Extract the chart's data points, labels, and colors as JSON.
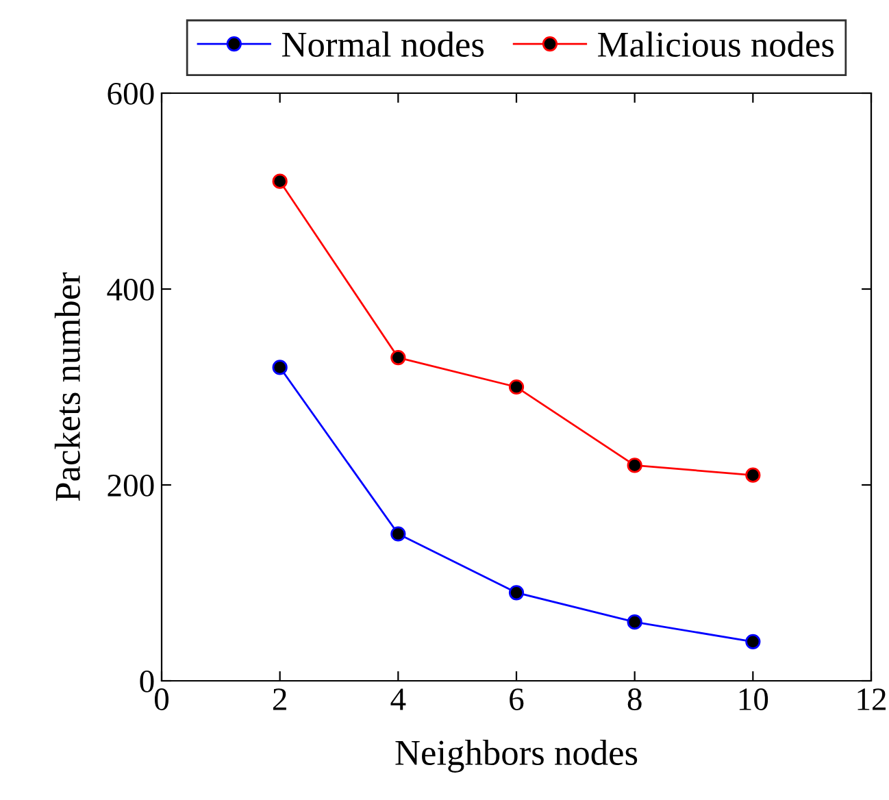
{
  "chart_data": {
    "type": "line",
    "xlabel": "Neighbors nodes",
    "ylabel": "Packets number",
    "x": [
      2,
      4,
      6,
      8,
      10
    ],
    "series": [
      {
        "name": "Normal nodes",
        "color": "#0000ff",
        "values": [
          320,
          150,
          90,
          60,
          40
        ]
      },
      {
        "name": "Malicious nodes",
        "color": "#ff0000",
        "values": [
          510,
          330,
          300,
          220,
          210
        ]
      }
    ],
    "xlim": [
      0,
      12
    ],
    "xticks": [
      0,
      2,
      4,
      6,
      8,
      10,
      12
    ],
    "ylim": [
      0,
      600
    ],
    "yticks": [
      0,
      200,
      400,
      600
    ],
    "marker": "circle",
    "line_style": "solid",
    "legend": "top",
    "grid": false
  }
}
